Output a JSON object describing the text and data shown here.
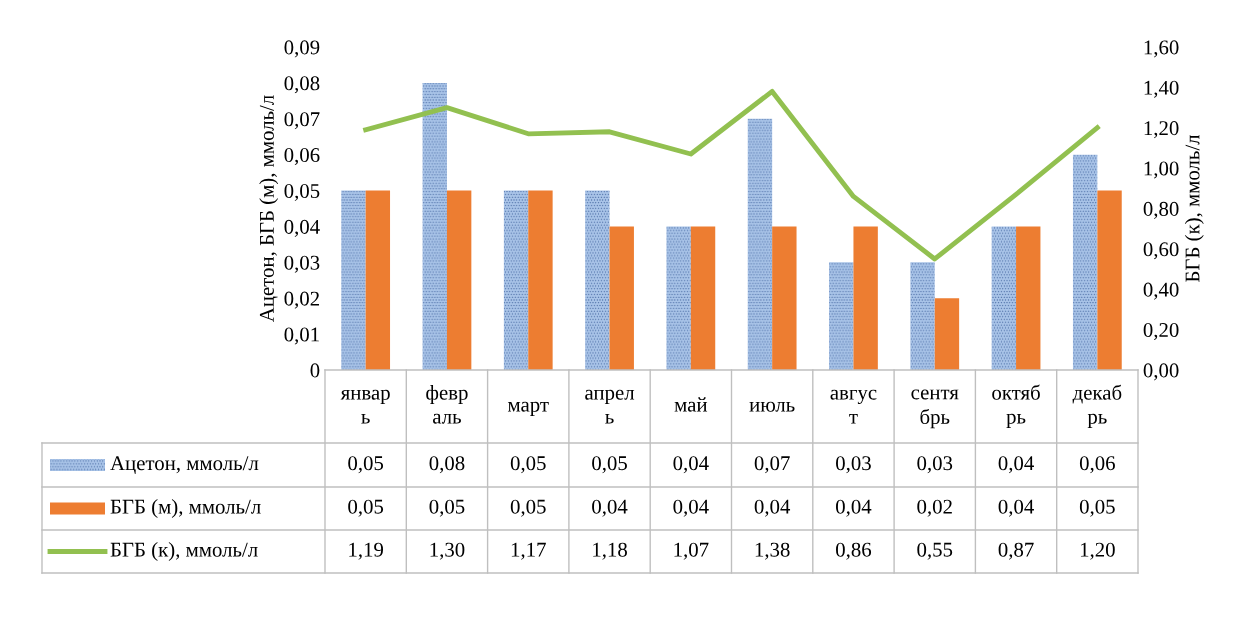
{
  "chart_data": {
    "type": "bar",
    "ylabel": "Ацетон, БГБ (м), ммоль/л",
    "y2label": "БГБ (к), ммоль/л",
    "categories": [
      "январ\nь",
      "февр\nаль",
      "март",
      "апрел\nь",
      "май",
      "июль",
      "авгус\nт",
      "сентя\nбрь",
      "октяб\nрь",
      "декаб\nрь"
    ],
    "series": [
      {
        "name": "Ацетон, ммоль/л",
        "color": "#a9c4e8",
        "values": [
          0.05,
          0.08,
          0.05,
          0.05,
          0.04,
          0.07,
          0.03,
          0.03,
          0.04,
          0.06
        ],
        "value_labels": [
          "0,05",
          "0,08",
          "0,05",
          "0,05",
          "0,04",
          "0,07",
          "0,03",
          "0,03",
          "0,04",
          "0,06"
        ]
      },
      {
        "name": "БГБ (м), ммоль/л",
        "color": "#ed7d31",
        "values": [
          0.05,
          0.05,
          0.05,
          0.04,
          0.04,
          0.04,
          0.04,
          0.02,
          0.04,
          0.05
        ],
        "value_labels": [
          "0,05",
          "0,05",
          "0,05",
          "0,04",
          "0,04",
          "0,04",
          "0,04",
          "0,02",
          "0,04",
          "0,05"
        ]
      },
      {
        "name": "БГБ (к), ммоль/л",
        "type": "line",
        "axis": "y2",
        "color": "#92c050",
        "values": [
          1.19,
          1.3,
          1.17,
          1.18,
          1.07,
          1.38,
          0.86,
          0.55,
          0.87,
          1.2
        ],
        "value_labels": [
          "1,19",
          "1,30",
          "1,17",
          "1,18",
          "1,07",
          "1,38",
          "0,86",
          "0,55",
          "0,87",
          "1,20"
        ]
      }
    ],
    "ylim": [
      0,
      0.09
    ],
    "yticks": [
      0,
      {
        "value": 0.01,
        "label": "0,01"
      },
      {
        "value": 0.02,
        "label": "0,02"
      },
      {
        "value": 0.03,
        "label": "0,03"
      },
      {
        "value": 0.04,
        "label": "0,04"
      },
      {
        "value": 0.05,
        "label": "0,05"
      },
      {
        "value": 0.06,
        "label": "0,06"
      },
      {
        "value": 0.07,
        "label": "0,07"
      },
      {
        "value": 0.08,
        "label": "0,08"
      },
      {
        "value": 0.09,
        "label": "0,09"
      }
    ],
    "y2lim": [
      0,
      1.6
    ],
    "y2ticks": [
      {
        "value": 0,
        "label": "0,00"
      },
      {
        "value": 0.2,
        "label": "0,20"
      },
      {
        "value": 0.4,
        "label": "0,40"
      },
      {
        "value": 0.6,
        "label": "0,60"
      },
      {
        "value": 0.8,
        "label": "0,80"
      },
      {
        "value": 1.0,
        "label": "1,00"
      },
      {
        "value": 1.2,
        "label": "1,20"
      },
      {
        "value": 1.4,
        "label": "1,40"
      },
      {
        "value": 1.6,
        "label": "1,60"
      }
    ],
    "legend": "bottom",
    "grid": false
  }
}
